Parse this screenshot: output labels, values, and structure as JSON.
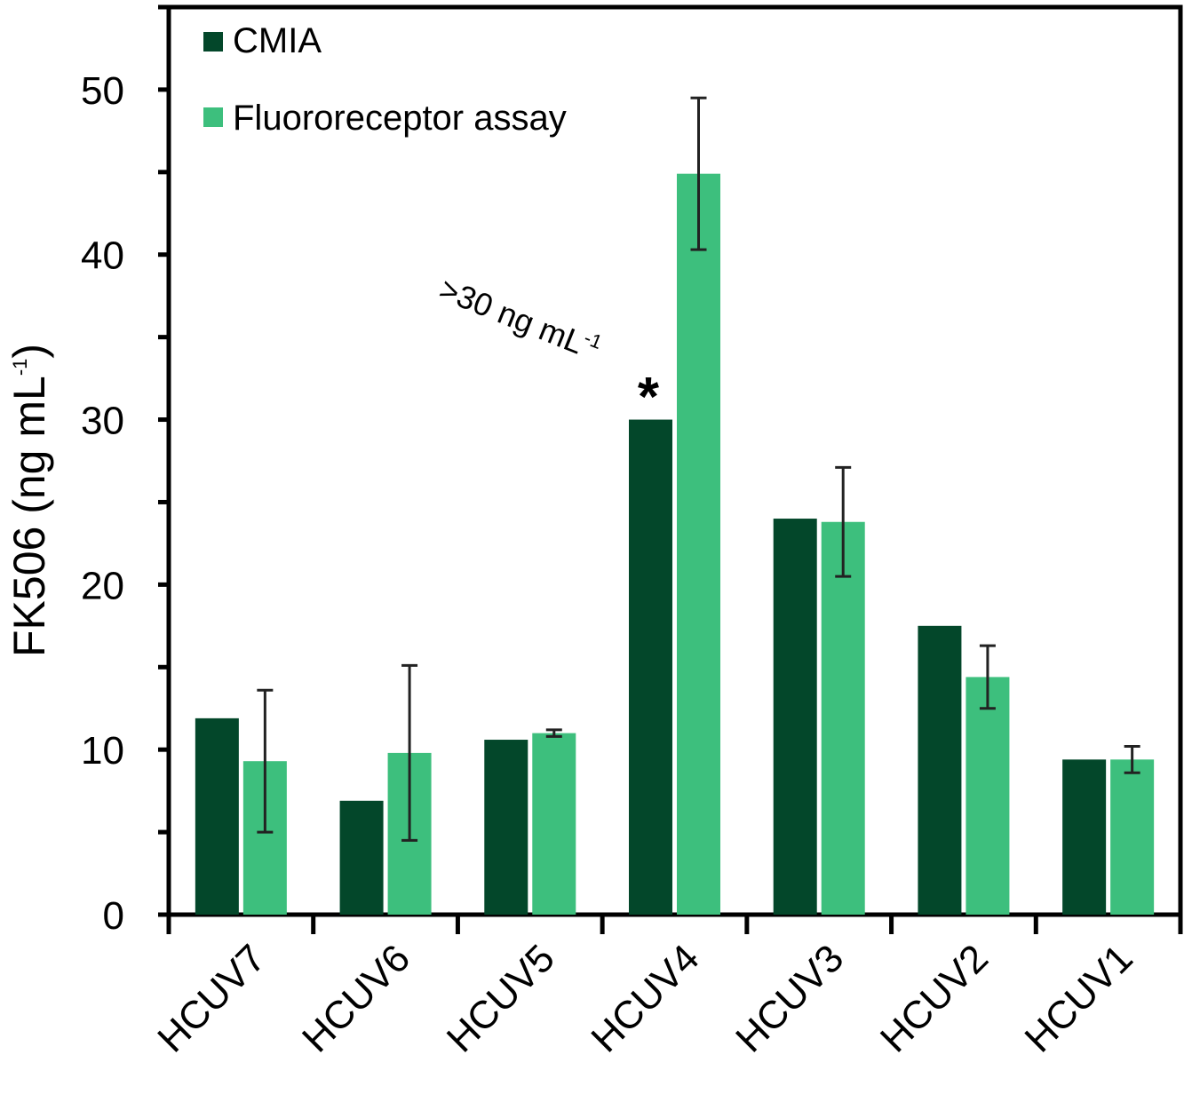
{
  "chart_data": {
    "type": "bar",
    "categories": [
      "HCUV7",
      "HCUV6",
      "HCUV5",
      "HCUV4",
      "HCUV3",
      "HCUV2",
      "HCUV1"
    ],
    "series": [
      {
        "name": "CMIA",
        "color": "#03472A",
        "values": [
          11.9,
          6.9,
          10.6,
          30.0,
          24.0,
          17.5,
          9.4
        ],
        "errors": null
      },
      {
        "name": "Fluororeceptor assay",
        "color": "#3DBF7D",
        "values": [
          9.3,
          9.8,
          11.0,
          44.9,
          23.8,
          14.4,
          9.4
        ],
        "errors": [
          4.3,
          5.3,
          0.2,
          4.6,
          3.3,
          1.9,
          0.8
        ]
      }
    ],
    "ylabel": "FK506 (ng mL",
    "ylabel_sup": "-1",
    "ylabel_close": ")",
    "xlabel": "",
    "ylim": [
      0,
      55
    ],
    "yticks": [
      0,
      10,
      20,
      30,
      40,
      50
    ],
    "grid": false,
    "legend_position": "top-left",
    "annotation": {
      "category": "HCUV4",
      "series": "CMIA",
      "text": ">30 ng mL",
      "sup": "-1",
      "marker": "*"
    }
  }
}
